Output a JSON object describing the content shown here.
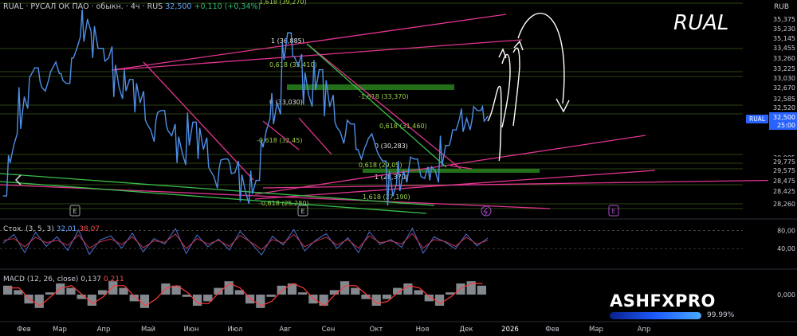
{
  "header": {
    "symbol": "RUAL",
    "name": "РУСАЛ ОК ПАО",
    "type": "обыкн.",
    "timeframe": "4ч",
    "exchange": "RUS",
    "price": "32,500",
    "change": "+0,110 (+0,34%)"
  },
  "watermark": "RUAL",
  "currency": "RUB",
  "brand": "ASHFXPRO",
  "progress_text": "99.99%",
  "progress_value": 0.9999,
  "colors": {
    "price_line": "#4f8fe8",
    "fib": "#9fd24a",
    "trend_pink": "#e0358f",
    "trend_green": "#39c04a",
    "stoch_k": "#4f6fd0",
    "stoch_d": "#c2334f",
    "macd_hist": "#9aa0a8",
    "macd_signal": "#ff3b3b"
  },
  "chart_data": [
    {
      "type": "line",
      "title": "RUAL",
      "series": [
        {
          "name": "RUAL",
          "values": [
            28.4,
            31.0,
            33.5,
            35.0,
            33.8,
            35.3,
            34.2,
            36.0,
            37.5,
            36.0,
            35.5,
            34.0,
            34.4,
            33.2,
            31.8,
            32.8,
            31.5,
            30.6,
            32.2,
            30.8,
            29.4,
            30.3,
            29.6,
            28.6,
            29.2,
            31.8,
            33.2,
            36.8,
            35.1,
            33.6,
            34.9,
            33.0,
            31.7,
            32.1,
            30.3,
            31.6,
            30.2,
            28.4,
            29.7,
            30.3,
            29.3,
            29.7,
            31.0,
            31.8,
            32.4,
            32.8,
            32.5
          ]
        }
      ],
      "x_labels": [
        "Фев",
        "Мар",
        "Апр",
        "Май",
        "Июн",
        "Июл",
        "Авг",
        "Сен",
        "Окт",
        "Ноя",
        "Дек",
        "2026",
        "Фев",
        "Мар",
        "Апр"
      ],
      "y_ticks": [
        "35,375",
        "35,230",
        "35,145",
        "33,455",
        "33,260",
        "33,225",
        "33,030",
        "32,670",
        "32,585",
        "32,520",
        "30,005",
        "29,775",
        "29,575",
        "28,475",
        "28,425",
        "28,260"
      ],
      "last_price": {
        "label": "RUAL",
        "value": "32,500",
        "countdown": "25:00"
      },
      "fib_labels": [
        "1,618 (39,270)",
        "1 (36,885)",
        "0,618 (35,410)",
        "0 (33,030)",
        "-1,618 (33,370)",
        "0,618 (31,460)",
        "-0,618 (32,45)",
        "0 (30,283)",
        "0,618 (29,05)",
        "1 (28,370)",
        "1,618 (27,190)",
        "-0,618 (25,280)"
      ],
      "event_markers": [
        "E",
        "E",
        "E"
      ]
    },
    {
      "type": "line",
      "title": "Стох. (3, 5, 3)",
      "series": [
        {
          "name": "32,01",
          "values": [
            52,
            71,
            31,
            76,
            45,
            66,
            36,
            81,
            27,
            59,
            68,
            41,
            74,
            33,
            62,
            50,
            84,
            29,
            70,
            44,
            61,
            37,
            78,
            53,
            26,
            67,
            48,
            82,
            35,
            58,
            73,
            40,
            64,
            31,
            77,
            49,
            60,
            43,
            85,
            30,
            66,
            55,
            39,
            72,
            46,
            63
          ]
        },
        {
          "name": "38,07",
          "values": [
            58,
            62,
            44,
            65,
            53,
            58,
            47,
            70,
            41,
            55,
            61,
            49,
            66,
            42,
            57,
            54,
            72,
            40,
            62,
            50,
            58,
            45,
            69,
            54,
            38,
            60,
            52,
            71,
            44,
            56,
            65,
            48,
            60,
            41,
            68,
            53,
            57,
            50,
            73,
            41,
            60,
            56,
            45,
            65,
            50,
            58
          ]
        }
      ],
      "y_ticks": [
        "80,00",
        "40,00"
      ]
    },
    {
      "type": "bar",
      "title": "MACD (12, 26, close)",
      "series": [
        {
          "name": "0,137",
          "values": [
            0.4,
            0.2,
            -0.4,
            -0.6,
            0.1,
            0.5,
            0.3,
            -0.2,
            -0.5,
            0.2,
            0.6,
            0.3,
            -0.3,
            -0.6,
            0.0,
            0.5,
            0.4,
            -0.1,
            -0.5,
            -0.3,
            0.3,
            0.6,
            0.2,
            -0.4,
            -0.6,
            -0.1,
            0.4,
            0.5,
            0.1,
            -0.4,
            -0.5,
            0.2,
            0.6,
            0.3,
            -0.2,
            -0.5,
            -0.2,
            0.3,
            0.5,
            0.2,
            -0.3,
            -0.5,
            0.1,
            0.5,
            0.6,
            0.4
          ]
        },
        {
          "name": "0,211",
          "values": [
            0.3,
            0.3,
            -0.2,
            -0.5,
            -0.1,
            0.3,
            0.4,
            0.0,
            -0.4,
            -0.1,
            0.4,
            0.4,
            -0.1,
            -0.5,
            -0.2,
            0.3,
            0.4,
            0.1,
            -0.4,
            -0.4,
            0.1,
            0.5,
            0.3,
            -0.2,
            -0.5,
            -0.3,
            0.2,
            0.5,
            0.3,
            -0.2,
            -0.5,
            0.0,
            0.4,
            0.4,
            0.0,
            -0.4,
            -0.3,
            0.1,
            0.4,
            0.3,
            -0.1,
            -0.4,
            -0.1,
            0.3,
            0.5,
            0.5
          ]
        }
      ],
      "y_ticks": [
        "0,000"
      ]
    }
  ]
}
